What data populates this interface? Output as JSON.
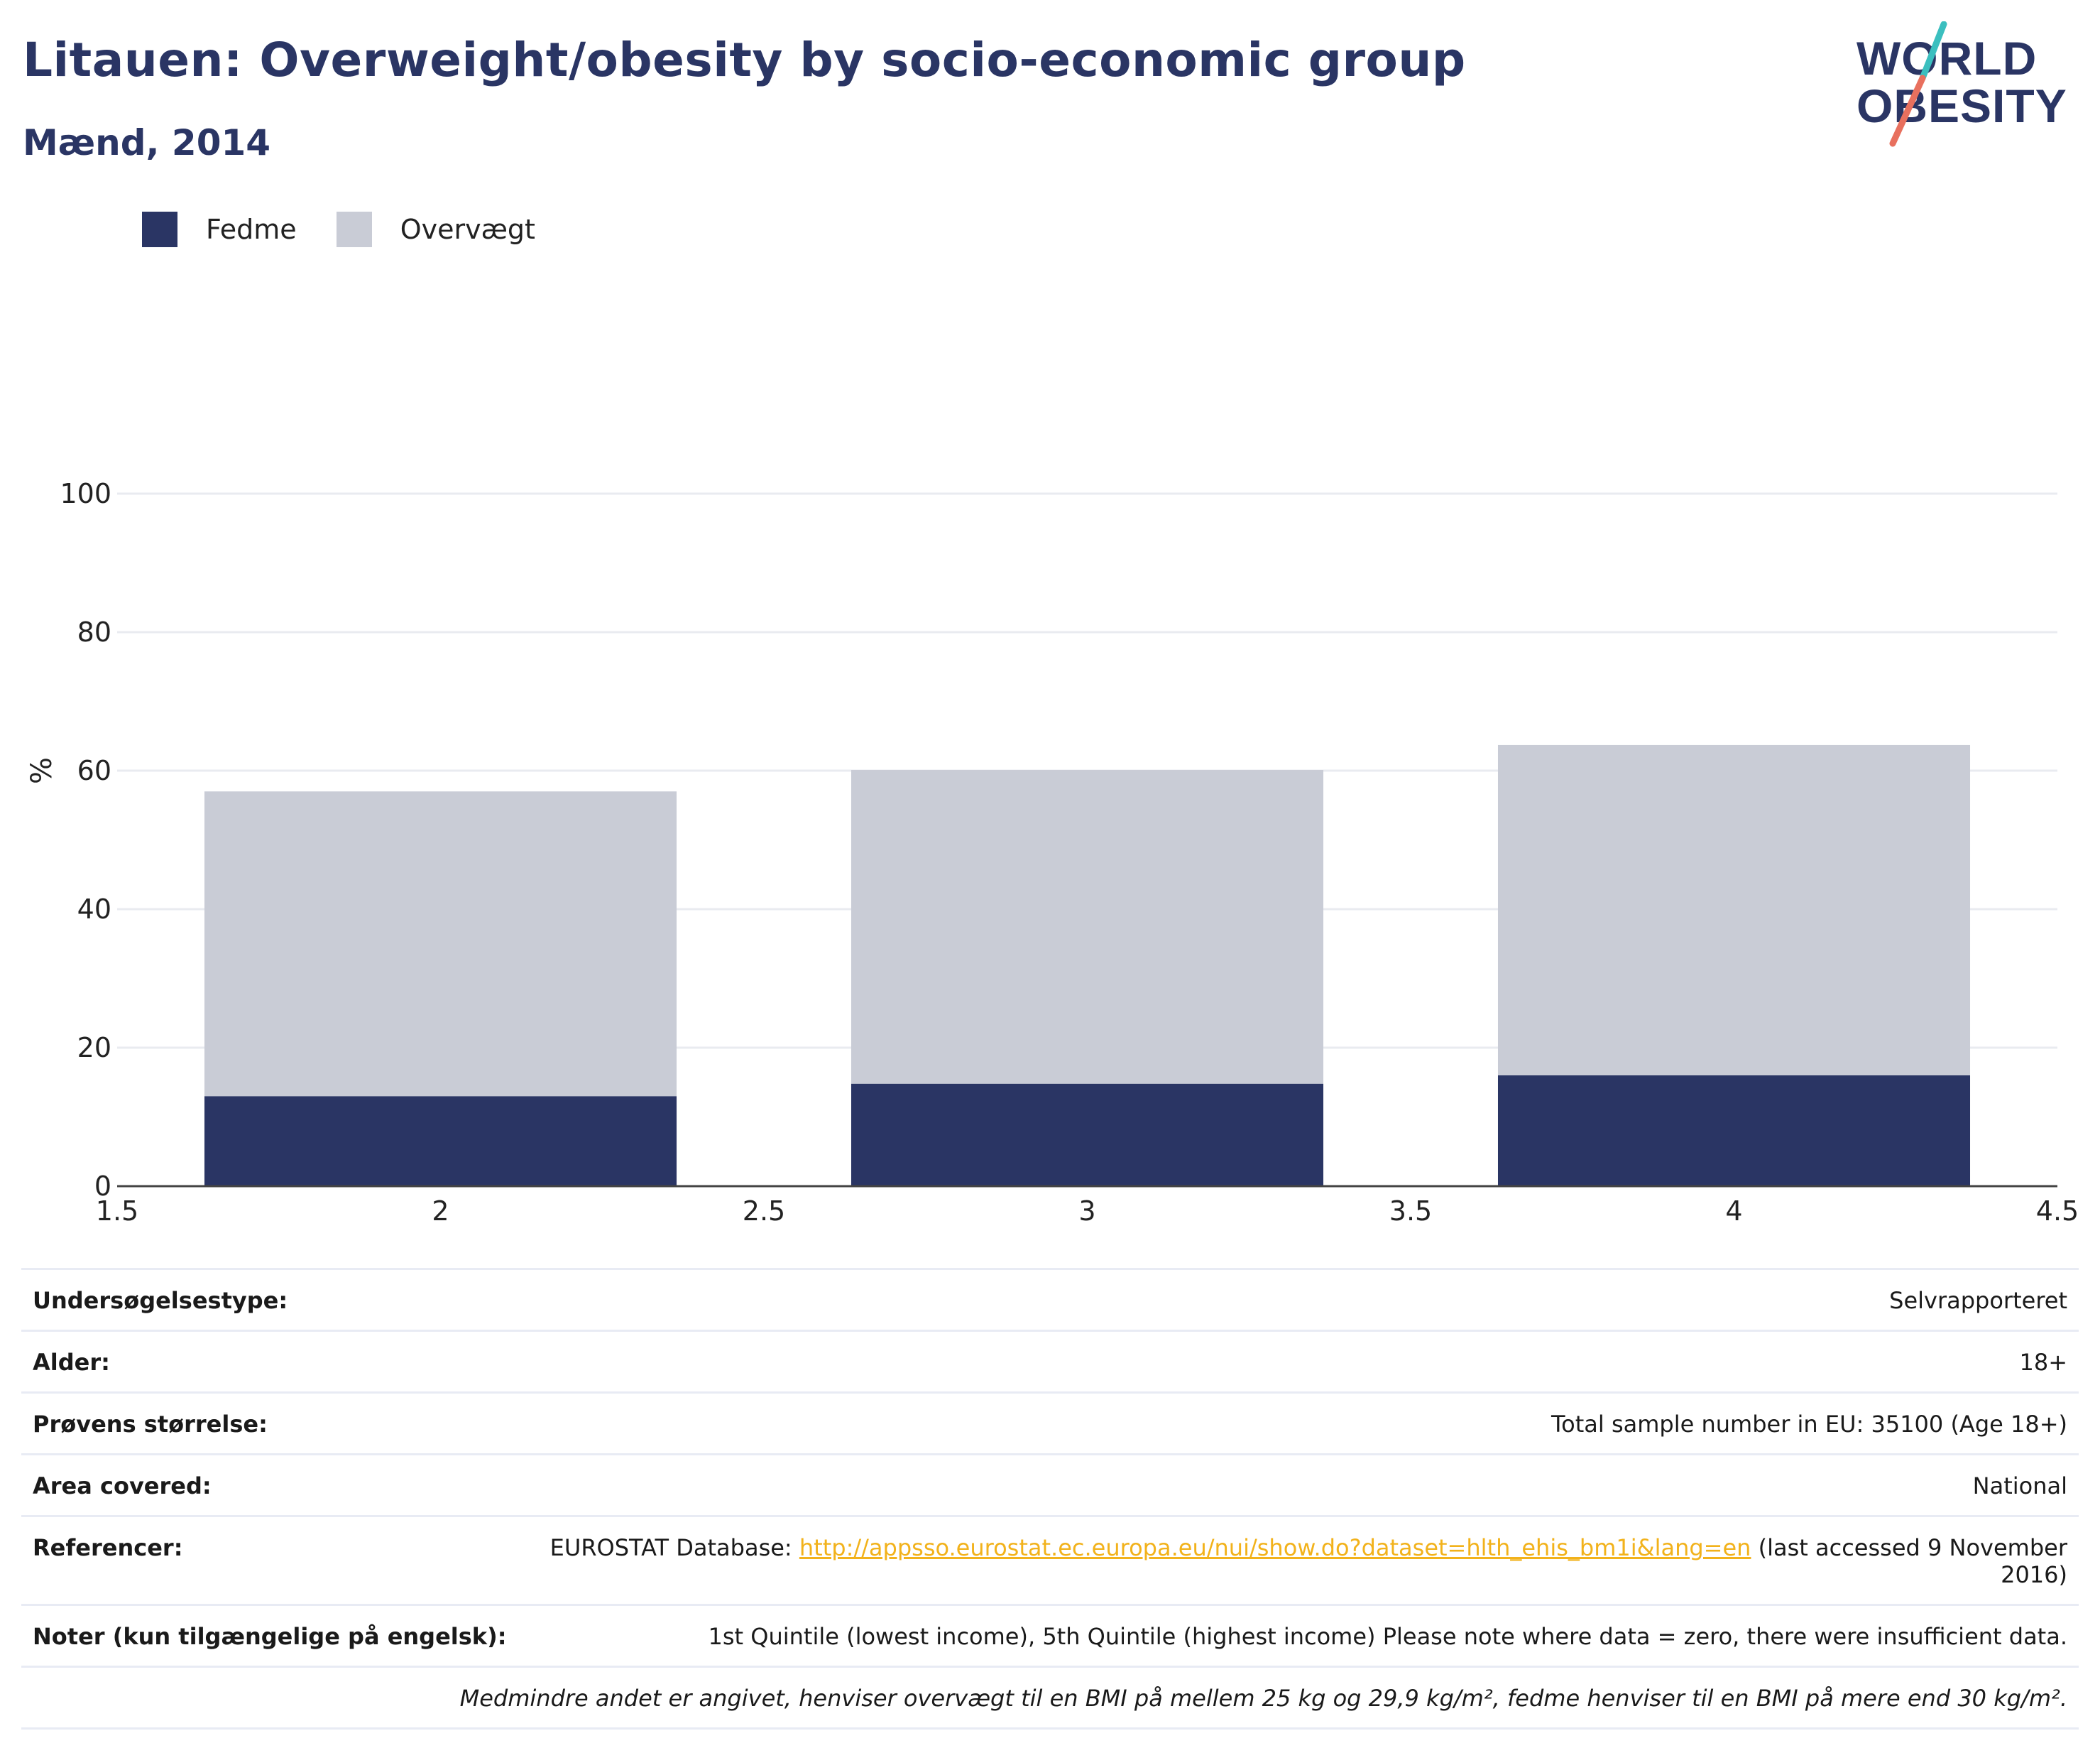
{
  "header": {
    "title": "Litauen: Overweight/obesity by socio-economic group",
    "subtitle": "Mænd, 2014"
  },
  "logo": {
    "line1": "WORLD",
    "line2": "OBESITY"
  },
  "colors": {
    "fedme": "#2a3564",
    "overvaegt": "#c9ccd6",
    "title": "#2a3564",
    "link": "#f2b21b",
    "grid": "#e9ebf0"
  },
  "legend": [
    {
      "label": "Fedme",
      "color": "#2a3564"
    },
    {
      "label": "Overvægt",
      "color": "#c9ccd6"
    }
  ],
  "chart_data": {
    "type": "bar",
    "stacked": true,
    "x": [
      2,
      3,
      4
    ],
    "series": [
      {
        "name": "Fedme",
        "values": [
          13,
          14.8,
          16
        ]
      },
      {
        "name": "Overvægt",
        "values": [
          44,
          45.3,
          47.7
        ]
      }
    ],
    "xlim": [
      1.5,
      4.5
    ],
    "ylim": [
      0,
      100
    ],
    "xticks": [
      1.5,
      2,
      2.5,
      3,
      3.5,
      4,
      4.5
    ],
    "xtick_labels": [
      "1.5",
      "2",
      "2.5",
      "3",
      "3.5",
      "4",
      "4.5"
    ],
    "yticks": [
      0,
      20,
      40,
      60,
      80,
      100
    ],
    "ylabel": "%",
    "bar_width": 0.73,
    "grid": true,
    "legend_position": "top-left"
  },
  "info": {
    "survey_type": {
      "label": "Undersøgelsestype:",
      "value": "Selvrapporteret"
    },
    "age": {
      "label": "Alder:",
      "value": "18+"
    },
    "sample_size": {
      "label": "Prøvens størrelse:",
      "value": "Total sample number in EU: 35100 (Age 18+)"
    },
    "area": {
      "label": "Area covered:",
      "value": "National"
    },
    "references": {
      "label": "Referencer:",
      "prefix": "EUROSTAT Database: ",
      "link": "http://appsso.eurostat.ec.europa.eu/nui/show.do?dataset=hlth_ehis_bm1i&lang=en",
      "suffix": " (last accessed 9 November 2016)"
    },
    "notes": {
      "label": "Noter (kun tilgængelige på engelsk):",
      "value": "1st Quintile (lowest income), 5th Quintile (highest income) Please note where data = zero, there were insufficient data."
    },
    "footnote": "Medmindre andet er angivet, henviser overvægt til en BMI på mellem 25 kg og 29,9 kg/m², fedme henviser til en BMI på mere end 30 kg/m²."
  }
}
